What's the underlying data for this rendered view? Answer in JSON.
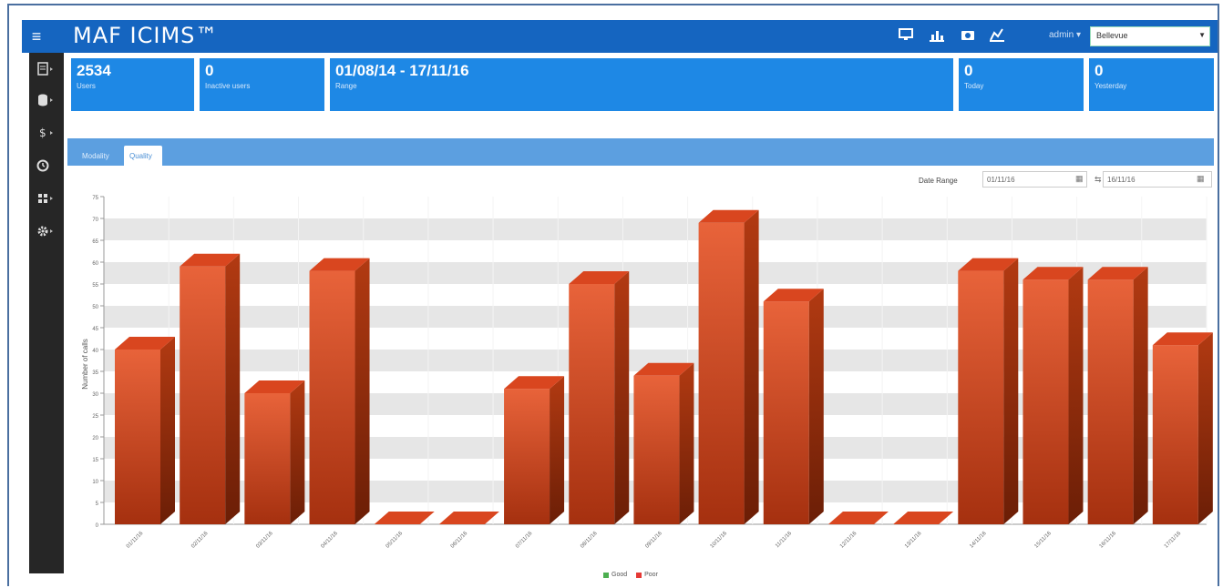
{
  "app": {
    "title": "MAF ICIMS™",
    "menu_icon": "hamburger-icon"
  },
  "topbar": {
    "icons": [
      "monitor-icon",
      "bar-chart-icon",
      "camera-icon",
      "line-chart-icon"
    ],
    "user": "admin ▾",
    "location": "Bellevue"
  },
  "sidebar": {
    "items": [
      {
        "icon": "report-icon"
      },
      {
        "icon": "database-icon"
      },
      {
        "icon": "dollar-icon"
      },
      {
        "icon": "clock-icon"
      },
      {
        "icon": "grid-icon"
      },
      {
        "icon": "gear-icon"
      }
    ]
  },
  "stats": [
    {
      "value": "2534",
      "label": "Users"
    },
    {
      "value": "0",
      "label": "Inactive users"
    },
    {
      "value": "01/08/14 - 17/11/16",
      "label": "Range"
    },
    {
      "value": "0",
      "label": "Today"
    },
    {
      "value": "0",
      "label": "Yesterday"
    }
  ],
  "tabs": {
    "modality": "Modality",
    "quality": "Quality"
  },
  "date_range": {
    "label": "Date Range",
    "from": "01/11/16",
    "to": "16/11/16"
  },
  "legend": {
    "good": "Good",
    "poor": "Poor"
  },
  "colors": {
    "bar": "#d9461f",
    "bar_dark": "#8e2a0c",
    "bar_top": "#e8633a",
    "good": "#4caf50",
    "poor": "#e53935",
    "topbar": "#1565c0",
    "card": "#1e88e5"
  },
  "chart_data": {
    "type": "bar",
    "ylabel": "Number of calls",
    "ylim": [
      0,
      75
    ],
    "yticks": [
      0,
      5,
      10,
      15,
      20,
      25,
      30,
      35,
      40,
      45,
      50,
      55,
      60,
      65,
      70,
      75
    ],
    "categories": [
      "01/11/16",
      "02/11/16",
      "03/11/16",
      "04/11/16",
      "05/11/16",
      "06/11/16",
      "07/11/16",
      "08/11/16",
      "09/11/16",
      "10/11/16",
      "11/11/16",
      "12/11/16",
      "13/11/16",
      "14/11/16",
      "15/11/16",
      "16/11/16",
      "17/11/16"
    ],
    "series": [
      {
        "name": "Good",
        "values": [
          0,
          0,
          0,
          0,
          0,
          0,
          0,
          0,
          0,
          0,
          0,
          0,
          0,
          0,
          0,
          0,
          0
        ]
      },
      {
        "name": "Poor",
        "values": [
          40,
          59,
          30,
          58,
          0,
          0,
          31,
          55,
          34,
          69,
          51,
          0,
          0,
          58,
          56,
          56,
          41
        ]
      }
    ]
  }
}
